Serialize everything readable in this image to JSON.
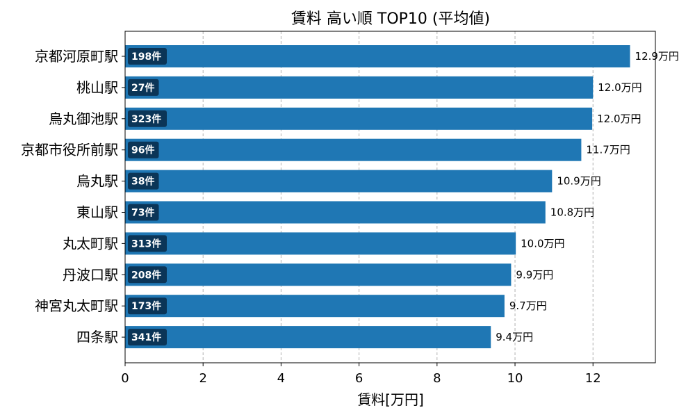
{
  "chart_data": {
    "type": "bar",
    "orientation": "horizontal",
    "title": "賃料 高い順 TOP10 (平均値)",
    "xlabel": "賃料[万円]",
    "ylabel": "",
    "xlim": [
      0,
      13.6
    ],
    "xticks": [
      "0",
      "2",
      "4",
      "6",
      "8",
      "10",
      "12"
    ],
    "grid": "x-dashed",
    "categories": [
      "京都河原町駅",
      "桃山駅",
      "烏丸御池駅",
      "京都市役所前駅",
      "烏丸駅",
      "東山駅",
      "丸太町駅",
      "丹波口駅",
      "神宮丸太町駅",
      "四条駅"
    ],
    "values": [
      12.95,
      12.0,
      11.98,
      11.7,
      10.95,
      10.78,
      10.02,
      9.9,
      9.73,
      9.38
    ],
    "value_labels": [
      "12.9万円",
      "12.0万円",
      "12.0万円",
      "11.7万円",
      "10.9万円",
      "10.8万円",
      "10.0万円",
      "9.9万円",
      "9.7万円",
      "9.4万円"
    ],
    "count_labels": [
      "198件",
      "27件",
      "323件",
      "96件",
      "38件",
      "73件",
      "313件",
      "208件",
      "173件",
      "341件"
    ],
    "colors": {
      "bar": "#1f77b4",
      "count_box": "#0b3557"
    }
  }
}
